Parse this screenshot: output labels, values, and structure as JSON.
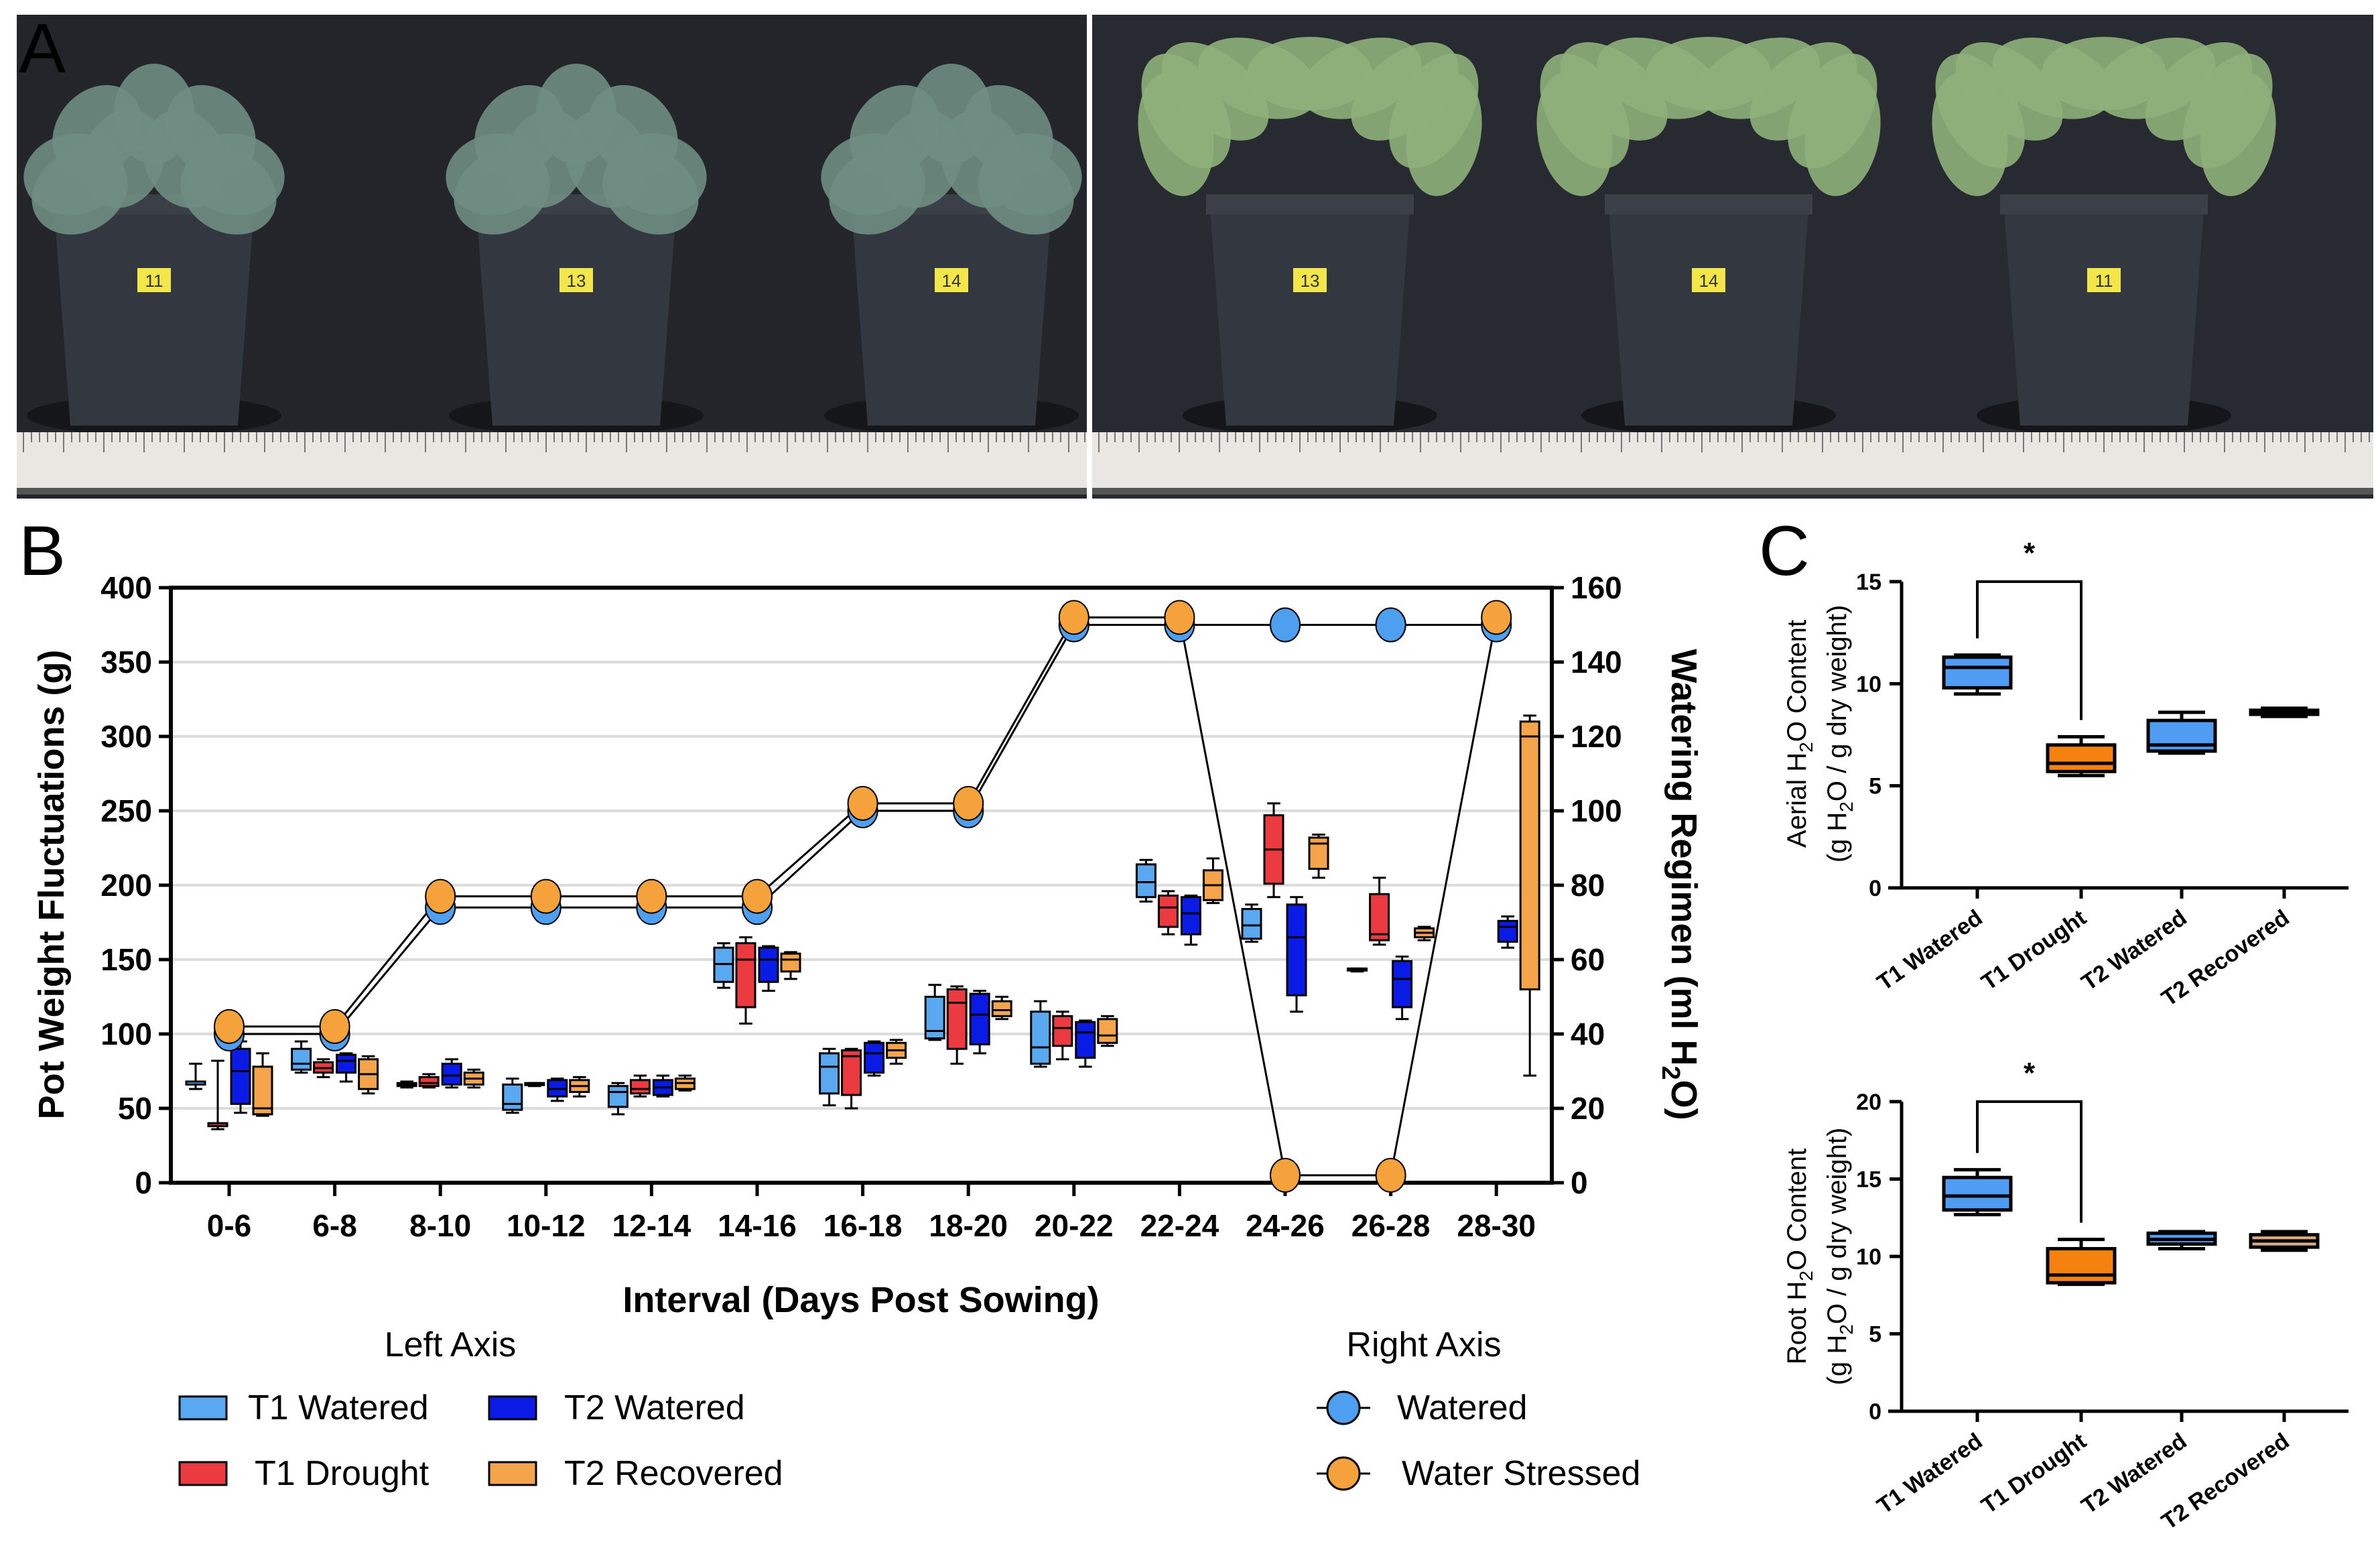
{
  "panel_labels": {
    "a": "A",
    "b": "B",
    "c": "C"
  },
  "photo": {
    "pot_tags_left": [
      "11",
      "13",
      "14"
    ],
    "pot_tags_right": [
      "13",
      "14",
      "11"
    ]
  },
  "colors": {
    "t1_watered": "#5aa8f0",
    "t1_drought": "#ec3b40",
    "t2_watered": "#0a1be6",
    "t2_recovered": "#f4a44a",
    "watered_line": "#4f9ff0",
    "stressed_line": "#f5a23c",
    "c_t1_watered": "#4f9cf2",
    "c_t1_drought": "#f5820f",
    "c_t2_watered": "#4f9cf2",
    "c_t2_recovered_root": "#d9ab85"
  },
  "chart_data": [
    {
      "type": "box+line",
      "title": "",
      "xlabel": "Interval (Days Post Sowing)",
      "ylabel": "Pot Weight Fluctuations (g)",
      "ylabel_right": "Watering Regimen (ml H2O)",
      "ylabel_right_parts": [
        "Watering  Regimen  (ml  H",
        "2",
        "O)"
      ],
      "ylim": [
        0,
        400
      ],
      "ylim_right": [
        0,
        160
      ],
      "yticks": [
        0,
        50,
        100,
        150,
        200,
        250,
        300,
        350,
        400
      ],
      "yticks_right": [
        0,
        20,
        40,
        60,
        80,
        100,
        120,
        140,
        160
      ],
      "grid": true,
      "categories": [
        "0-6",
        "6-8",
        "8-10",
        "10-12",
        "12-14",
        "14-16",
        "16-18",
        "18-20",
        "20-22",
        "22-24",
        "24-26",
        "26-28",
        "28-30"
      ],
      "legend": {
        "left_title": "Left  Axis",
        "right_title": "Right  Axis",
        "placement": "bottom"
      },
      "box_series": [
        {
          "name": "T1 Watered",
          "legend": "T1 Watered",
          "stats": [
            [
              63,
              66,
              68,
              68,
              80
            ],
            [
              74,
              76,
              80,
              90,
              95
            ],
            [
              64,
              65,
              66,
              67,
              68
            ],
            [
              47,
              49,
              53,
              66,
              70
            ],
            [
              46,
              51,
              61,
              65,
              67
            ],
            [
              131,
              135,
              147,
              158,
              161
            ],
            [
              52,
              60,
              78,
              87,
              90
            ],
            [
              96,
              97,
              102,
              125,
              133
            ],
            [
              78,
              80,
              91,
              115,
              122
            ],
            [
              189,
              192,
              202,
              214,
              217
            ],
            [
              162,
              164,
              173,
              184,
              187
            ],
            [
              142,
              143,
              143,
              144,
              144
            ],
            null
          ]
        },
        {
          "name": "T1 Drought",
          "legend": "T1  Drought",
          "stats": [
            [
              36,
              38,
              40,
              40,
              82
            ],
            [
              71,
              74,
              77,
              81,
              83
            ],
            [
              64,
              65,
              67,
              71,
              73
            ],
            [
              65,
              66,
              66,
              67,
              67
            ],
            [
              58,
              60,
              63,
              69,
              72
            ],
            [
              107,
              118,
              150,
              161,
              165
            ],
            [
              50,
              59,
              85,
              89,
              90
            ],
            [
              80,
              90,
              121,
              130,
              132
            ],
            [
              83,
              92,
              104,
              112,
              115
            ],
            [
              167,
              172,
              185,
              193,
              196
            ],
            [
              192,
              201,
              224,
              247,
              255
            ],
            [
              160,
              163,
              167,
              194,
              205
            ],
            null
          ]
        },
        {
          "name": "T2 Watered",
          "legend": "T2  Watered",
          "stats": [
            [
              47,
              53,
              75,
              90,
              95
            ],
            [
              68,
              74,
              82,
              86,
              87
            ],
            [
              64,
              66,
              72,
              80,
              83
            ],
            [
              55,
              58,
              63,
              69,
              70
            ],
            [
              58,
              59,
              64,
              69,
              72
            ],
            [
              129,
              135,
              150,
              158,
              159
            ],
            [
              72,
              74,
              87,
              94,
              95
            ],
            [
              87,
              93,
              113,
              127,
              129
            ],
            [
              78,
              84,
              101,
              108,
              109
            ],
            [
              160,
              167,
              181,
              192,
              193
            ],
            [
              115,
              126,
              165,
              187,
              192
            ],
            [
              110,
              118,
              137,
              149,
              152
            ],
            [
              158,
              162,
              172,
              176,
              179
            ]
          ]
        },
        {
          "name": "T2 Recovered",
          "legend": "T2  Recovered",
          "stats": [
            [
              45,
              46,
              50,
              78,
              87
            ],
            [
              60,
              63,
              73,
              83,
              85
            ],
            [
              64,
              66,
              70,
              74,
              76
            ],
            [
              58,
              61,
              65,
              69,
              71
            ],
            [
              62,
              63,
              67,
              70,
              72
            ],
            [
              137,
              142,
              150,
              154,
              155
            ],
            [
              80,
              84,
              89,
              94,
              96
            ],
            [
              110,
              112,
              116,
              122,
              125
            ],
            [
              92,
              94,
              99,
              110,
              112
            ],
            [
              188,
              190,
              200,
              210,
              218
            ],
            [
              205,
              211,
              228,
              232,
              234
            ],
            [
              163,
              165,
              168,
              171,
              172
            ],
            [
              72,
              130,
              300,
              310,
              314
            ]
          ]
        }
      ],
      "line_series": [
        {
          "name": "Watered",
          "legend": "Watered",
          "axis": "right",
          "values": [
            40,
            40,
            74,
            74,
            74,
            74,
            100,
            100,
            150,
            150,
            150,
            150,
            150
          ]
        },
        {
          "name": "Water Stressed",
          "legend": "Water Stressed",
          "axis": "right",
          "values": [
            42,
            42,
            77,
            77,
            77,
            77,
            102,
            102,
            152,
            152,
            2,
            2,
            152
          ]
        }
      ]
    },
    {
      "type": "box",
      "ylabel_parts": [
        "Aerial  H",
        "2",
        "O Content"
      ],
      "ylabel2_parts": [
        "(g H",
        "2",
        "O / g dry weight)"
      ],
      "ylim": [
        0,
        15
      ],
      "yticks": [
        0,
        5,
        10,
        15
      ],
      "categories": [
        "T1 Watered",
        "T1 Drought",
        "T2 Watered",
        "T2 Recovered"
      ],
      "stats": [
        [
          9.5,
          9.8,
          10.8,
          11.3,
          11.4
        ],
        [
          5.5,
          5.7,
          6.1,
          7.0,
          7.4
        ],
        [
          6.6,
          6.7,
          7.0,
          8.2,
          8.6
        ],
        [
          8.4,
          8.5,
          8.6,
          8.7,
          8.8
        ]
      ],
      "significance": {
        "pair": [
          0,
          1
        ],
        "label": "*"
      }
    },
    {
      "type": "box",
      "ylabel_parts": [
        "Root  H",
        "2",
        "O Content"
      ],
      "ylabel2_parts": [
        "(g H",
        "2",
        "O / g dry weight)"
      ],
      "ylim": [
        0,
        20
      ],
      "yticks": [
        0,
        5,
        10,
        15,
        20
      ],
      "categories": [
        "T1 Watered",
        "T1 Drought",
        "T2 Watered",
        "T2 Recovered"
      ],
      "stats": [
        [
          12.7,
          13.0,
          13.9,
          15.1,
          15.6
        ],
        [
          8.2,
          8.3,
          8.8,
          10.5,
          11.1
        ],
        [
          10.5,
          10.8,
          11.1,
          11.5,
          11.6
        ],
        [
          10.4,
          10.6,
          11.0,
          11.4,
          11.6
        ]
      ],
      "significance": {
        "pair": [
          0,
          1
        ],
        "label": "*"
      }
    }
  ]
}
